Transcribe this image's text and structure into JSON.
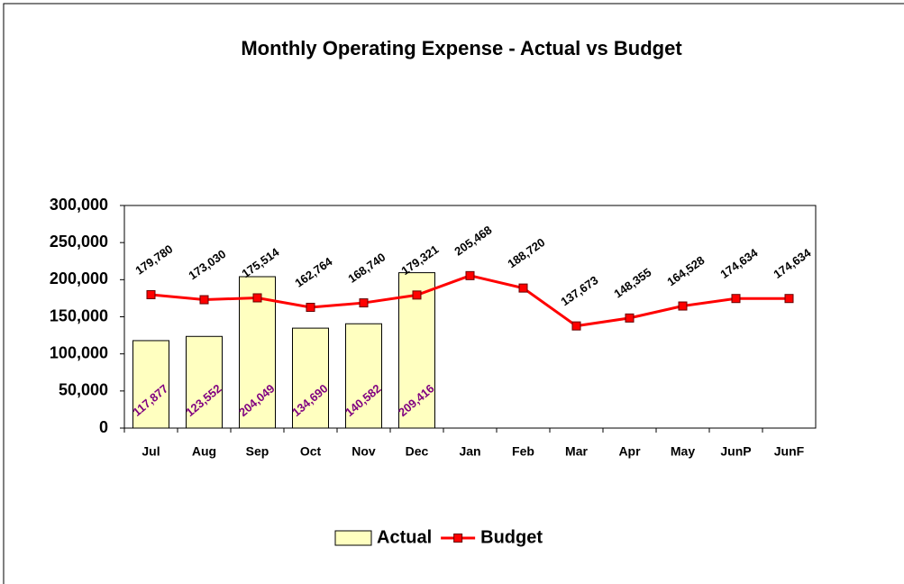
{
  "chart_data": {
    "type": "combo",
    "title": "Monthly Operating Expense - Actual vs Budget",
    "categories": [
      "Jul",
      "Aug",
      "Sep",
      "Oct",
      "Nov",
      "Dec",
      "Jan",
      "Feb",
      "Mar",
      "Apr",
      "May",
      "JunP",
      "JunF"
    ],
    "series": [
      {
        "name": "Actual",
        "type": "bar",
        "color": "#ffffc0",
        "label_color": "#800080",
        "values": [
          117877,
          123552,
          204049,
          134690,
          140582,
          209416,
          null,
          null,
          null,
          null,
          null,
          null,
          null
        ],
        "value_labels": [
          "117,877",
          "123,552",
          "204,049",
          "134,690",
          "140,582",
          "209,416",
          null,
          null,
          null,
          null,
          null,
          null,
          null
        ]
      },
      {
        "name": "Budget",
        "type": "line",
        "color": "#ff0000",
        "label_color": "#000000",
        "values": [
          179780,
          173030,
          175514,
          162764,
          168740,
          179321,
          205468,
          188720,
          137673,
          148355,
          164528,
          174634,
          174634
        ],
        "value_labels": [
          "179,780",
          "173,030",
          "175,514",
          "162,764",
          "168,740",
          "179,321",
          "205,468",
          "188,720",
          "137,673",
          "148,355",
          "164,528",
          "174,634",
          "174,634"
        ]
      }
    ],
    "ylim": [
      0,
      300000
    ],
    "yticks": [
      {
        "value": 0,
        "label": "0"
      },
      {
        "value": 50000,
        "label": "50,000"
      },
      {
        "value": 100000,
        "label": "100,000"
      },
      {
        "value": 150000,
        "label": "150,000"
      },
      {
        "value": 200000,
        "label": "200,000"
      },
      {
        "value": 250000,
        "label": "250,000"
      },
      {
        "value": 300000,
        "label": "300,000"
      }
    ],
    "grid": false,
    "legend": "bottom"
  }
}
